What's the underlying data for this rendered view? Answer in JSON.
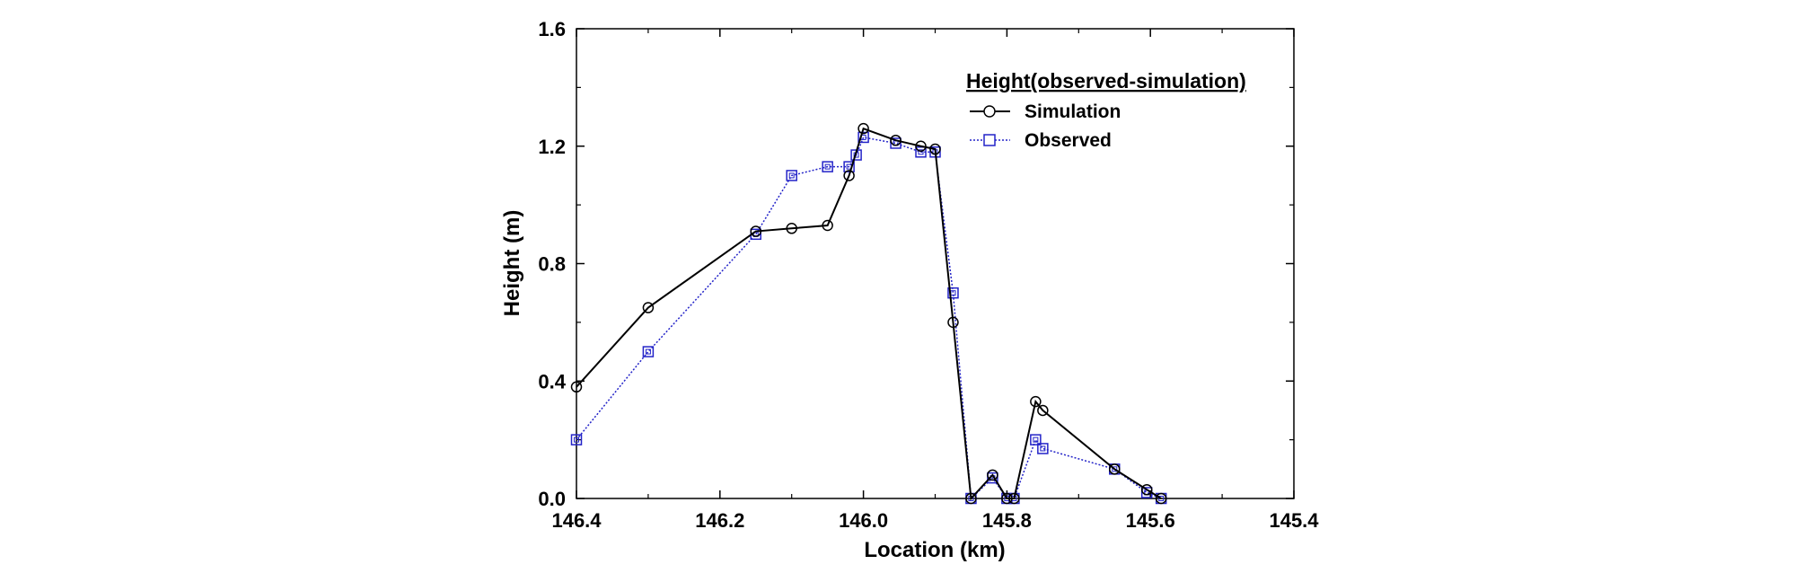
{
  "chart_data": {
    "type": "line",
    "title": "",
    "xlabel": "Location (km)",
    "ylabel": "Height (m)",
    "xlim": [
      146.4,
      145.4
    ],
    "ylim": [
      0.0,
      1.6
    ],
    "x_ticks": [
      "146.4",
      "146.2",
      "146.0",
      "145.8",
      "145.6",
      "145.4"
    ],
    "x_tick_values": [
      146.4,
      146.2,
      146.0,
      145.8,
      145.6,
      145.4
    ],
    "y_ticks": [
      "0.0",
      "0.4",
      "0.8",
      "1.2",
      "1.6"
    ],
    "y_tick_values": [
      0.0,
      0.4,
      0.8,
      1.2,
      1.6
    ],
    "grid": false,
    "legend": {
      "title": "Height(observed-simulation)",
      "placement": "upper-right"
    },
    "series": [
      {
        "name": "Simulation",
        "marker": "circle",
        "line_style": "solid",
        "color": "#000000",
        "x": [
          146.4,
          146.3,
          146.15,
          146.1,
          146.05,
          146.02,
          146.0,
          145.955,
          145.92,
          145.9,
          145.875,
          145.85,
          145.82,
          145.8,
          145.79,
          145.76,
          145.75,
          145.65,
          145.605,
          145.585
        ],
        "y": [
          0.38,
          0.65,
          0.91,
          0.92,
          0.93,
          1.1,
          1.26,
          1.22,
          1.2,
          1.19,
          0.6,
          0.0,
          0.08,
          0.0,
          0.0,
          0.33,
          0.3,
          0.1,
          0.03,
          0.0
        ]
      },
      {
        "name": "Observed",
        "marker": "square",
        "line_style": "dotted",
        "color": "#2323c8",
        "x": [
          146.4,
          146.3,
          146.15,
          146.1,
          146.05,
          146.02,
          146.01,
          146.0,
          145.955,
          145.92,
          145.9,
          145.875,
          145.85,
          145.82,
          145.8,
          145.79,
          145.76,
          145.75,
          145.65,
          145.605,
          145.585
        ],
        "y": [
          0.2,
          0.5,
          0.9,
          1.1,
          1.13,
          1.13,
          1.17,
          1.23,
          1.21,
          1.18,
          1.18,
          0.7,
          0.0,
          0.07,
          0.0,
          0.0,
          0.2,
          0.17,
          0.1,
          0.02,
          0.0
        ]
      }
    ]
  }
}
